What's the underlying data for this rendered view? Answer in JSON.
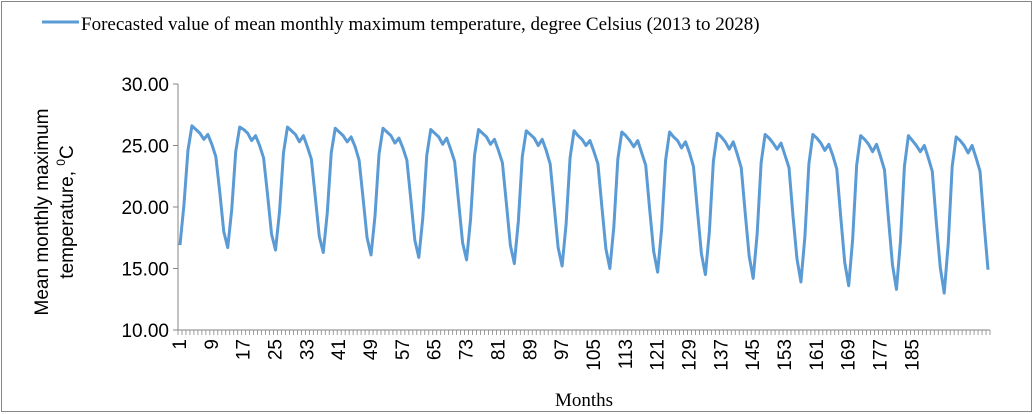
{
  "chart_data": {
    "type": "line",
    "title": "",
    "legend": {
      "position": "top",
      "entries": [
        "Forecasted value of mean monthly maximum temperature, degree Celsius (2013 to 2028)"
      ]
    },
    "xlabel": "Months",
    "ylabel_line1": "Mean monthly maximum",
    "ylabel_line2": "temperature, ",
    "ylabel_sup": "0",
    "ylabel_unit": "C",
    "ylim": [
      10,
      30
    ],
    "yticks": [
      "10.00",
      "15.00",
      "20.00",
      "25.00",
      "30.00"
    ],
    "ytick_values": [
      10,
      15,
      20,
      25,
      30
    ],
    "xtick_labels": [
      "1",
      "9",
      "17",
      "25",
      "33",
      "41",
      "49",
      "57",
      "65",
      "73",
      "81",
      "89",
      "97",
      "105",
      "113",
      "121",
      "129",
      "137",
      "145",
      "153",
      "161",
      "169",
      "177",
      "185"
    ],
    "grid": false,
    "color": "#5b9bd5",
    "series": [
      {
        "name": "Forecasted value of mean monthly maximum temperature, degree Celsius (2013 to 2028)",
        "x_start": 1,
        "values": [
          16.9,
          20.2,
          24.6,
          26.6,
          26.3,
          26.0,
          25.5,
          25.9,
          25.1,
          24.1,
          21.2,
          18.0,
          16.7,
          19.8,
          24.5,
          26.5,
          26.3,
          26.0,
          25.4,
          25.8,
          25.0,
          24.0,
          21.0,
          17.8,
          16.5,
          19.6,
          24.4,
          26.5,
          26.2,
          25.9,
          25.3,
          25.8,
          24.9,
          23.9,
          20.8,
          17.6,
          16.3,
          19.5,
          24.4,
          26.4,
          26.1,
          25.8,
          25.3,
          25.7,
          24.9,
          23.8,
          20.7,
          17.5,
          16.1,
          19.3,
          24.3,
          26.4,
          26.1,
          25.8,
          25.2,
          25.6,
          24.8,
          23.8,
          20.6,
          17.3,
          15.9,
          19.1,
          24.2,
          26.3,
          26.0,
          25.7,
          25.1,
          25.6,
          24.7,
          23.7,
          20.4,
          17.1,
          15.7,
          19.0,
          24.2,
          26.3,
          26.0,
          25.7,
          25.1,
          25.5,
          24.6,
          23.6,
          20.3,
          16.9,
          15.4,
          18.8,
          24.1,
          26.2,
          25.9,
          25.6,
          25.0,
          25.5,
          24.6,
          23.5,
          20.1,
          16.7,
          15.2,
          18.6,
          24.0,
          26.2,
          25.8,
          25.5,
          25.0,
          25.4,
          24.5,
          23.5,
          20.0,
          16.6,
          15.0,
          18.4,
          23.9,
          26.1,
          25.8,
          25.4,
          24.9,
          25.4,
          24.4,
          23.4,
          19.8,
          16.4,
          14.7,
          18.2,
          23.8,
          26.1,
          25.7,
          25.4,
          24.8,
          25.3,
          24.4,
          23.3,
          19.7,
          16.2,
          14.5,
          18.0,
          23.7,
          26.0,
          25.7,
          25.3,
          24.7,
          25.3,
          24.3,
          23.2,
          19.5,
          16.0,
          14.2,
          17.8,
          23.6,
          25.9,
          25.6,
          25.2,
          24.7,
          25.2,
          24.2,
          23.2,
          19.3,
          15.8,
          13.9,
          17.6,
          23.5,
          25.9,
          25.6,
          25.2,
          24.6,
          25.1,
          24.2,
          23.1,
          19.2,
          15.5,
          13.6,
          17.4,
          23.4,
          25.8,
          25.5,
          25.1,
          24.5,
          25.1,
          24.1,
          23.0,
          19.0,
          15.3,
          13.3,
          17.2,
          23.3,
          25.8,
          25.4,
          25.0,
          24.5,
          25.0,
          24.0,
          22.9,
          18.8,
          15.1,
          13.0,
          17.0,
          23.3,
          25.7,
          25.4,
          25.0,
          24.4,
          25.0,
          24.0,
          22.9,
          18.7,
          14.9
        ]
      }
    ]
  }
}
